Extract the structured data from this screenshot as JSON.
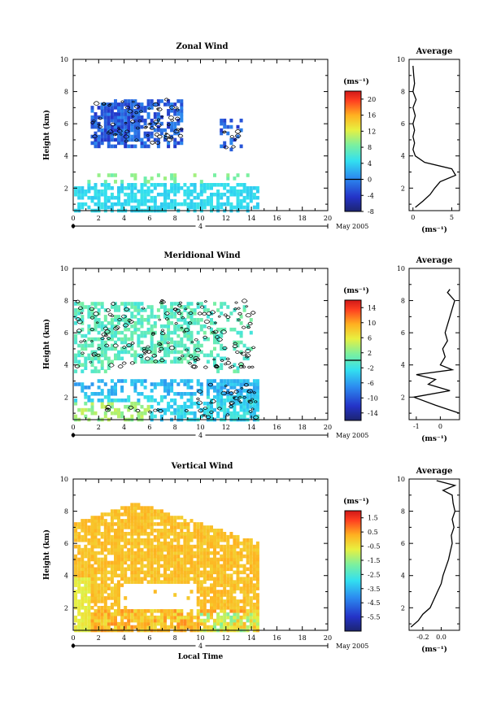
{
  "figure": {
    "x_axis_label": "Local Time",
    "date_label": "May 2005",
    "day_label": "4",
    "cbar_unit": "(ms⁻¹)",
    "avg_title": "Average"
  },
  "chart_data": [
    {
      "type": "heatmap",
      "title": "Zonal Wind",
      "xlabel": "Local Time",
      "ylabel": "Height (km)",
      "xlim": [
        0,
        20
      ],
      "ylim": [
        0.6,
        10
      ],
      "x_ticks": [
        0,
        2,
        4,
        6,
        8,
        10,
        12,
        14,
        16,
        18,
        20
      ],
      "y_ticks": [
        2,
        4,
        6,
        8,
        10
      ],
      "colorbar": {
        "unit": "(ms⁻¹)",
        "range": [
          -8,
          22
        ],
        "ticks": [
          -8,
          -4,
          0,
          4,
          8,
          12,
          16,
          20
        ],
        "contour_at": 0
      },
      "data_extent": {
        "time": [
          0,
          14.6
        ],
        "height": [
          0.6,
          8.0
        ]
      },
      "average": {
        "title": "Average",
        "xlabel": "(ms⁻¹)",
        "xlim": [
          -0.5,
          6
        ],
        "x_ticks": [
          0,
          5
        ],
        "ylim": [
          0.6,
          10
        ],
        "y_ticks": [
          2,
          4,
          6,
          8,
          10
        ],
        "height": [
          0.8,
          1.2,
          1.6,
          2.0,
          2.4,
          2.8,
          3.2,
          3.6,
          4.0,
          4.4,
          4.8,
          5.2,
          5.6,
          6.0,
          6.5,
          7.0,
          7.5,
          8.0,
          8.5,
          9.0,
          9.6
        ],
        "value": [
          0.3,
          1.3,
          2.2,
          2.8,
          3.5,
          5.5,
          5.0,
          1.5,
          0.3,
          0.0,
          0.2,
          0.0,
          0.2,
          0.0,
          0.3,
          0.0,
          0.4,
          0.0,
          0.2,
          0.1,
          0.0
        ]
      }
    },
    {
      "type": "heatmap",
      "title": "Meridional Wind",
      "xlabel": "Local Time",
      "ylabel": "Height (km)",
      "xlim": [
        0,
        20
      ],
      "ylim": [
        0.6,
        10
      ],
      "x_ticks": [
        0,
        2,
        4,
        6,
        8,
        10,
        12,
        14,
        16,
        18,
        20
      ],
      "y_ticks": [
        2,
        4,
        6,
        8,
        10
      ],
      "colorbar": {
        "unit": "(ms⁻¹)",
        "range": [
          -16,
          16
        ],
        "ticks": [
          -14,
          -10,
          -6,
          -2,
          2,
          6,
          10,
          14
        ],
        "contour_at": 0
      },
      "data_extent": {
        "time": [
          0,
          14.6
        ],
        "height": [
          0.6,
          8.0
        ]
      },
      "average": {
        "title": "Average",
        "xlabel": "(ms⁻¹)",
        "xlim": [
          -1.3,
          0.8
        ],
        "x_ticks": [
          -1,
          0
        ],
        "ylim": [
          0.6,
          10
        ],
        "y_ticks": [
          2,
          4,
          6,
          8,
          10
        ],
        "height": [
          1.0,
          1.5,
          2.0,
          2.4,
          2.8,
          3.1,
          3.4,
          3.7,
          4.0,
          4.5,
          5.0,
          5.5,
          6.0,
          6.5,
          7.0,
          7.5,
          8.0,
          8.5,
          8.7
        ],
        "value": [
          0.8,
          -0.2,
          -1.1,
          0.4,
          -0.5,
          -0.2,
          -1.0,
          0.5,
          0.0,
          0.2,
          0.1,
          0.3,
          0.2,
          0.3,
          0.4,
          0.5,
          0.6,
          0.3,
          0.4
        ]
      }
    },
    {
      "type": "heatmap",
      "title": "Vertical Wind",
      "xlabel": "Local Time",
      "ylabel": "Height (km)",
      "xlim": [
        0,
        20
      ],
      "ylim": [
        0.6,
        10
      ],
      "x_ticks": [
        0,
        2,
        4,
        6,
        8,
        10,
        12,
        14,
        16,
        18,
        20
      ],
      "y_ticks": [
        2,
        4,
        6,
        8,
        10
      ],
      "colorbar": {
        "unit": "(ms⁻¹)",
        "range": [
          -6.5,
          2.0
        ],
        "ticks": [
          -5.5,
          -4.5,
          -3.5,
          -2.5,
          -1.5,
          -0.5,
          0.5,
          1.5
        ]
      },
      "data_extent": {
        "time": [
          0,
          14.6
        ],
        "height": [
          0.6,
          8.8
        ]
      },
      "average": {
        "title": "Average",
        "xlabel": "(ms⁻¹)",
        "xlim": [
          -0.35,
          0.2
        ],
        "x_ticks": [
          -0.2,
          0.0
        ],
        "x_tick_labels": [
          "-0.2",
          "0.0"
        ],
        "ylim": [
          0.6,
          10
        ],
        "y_ticks": [
          2,
          4,
          6,
          8,
          10
        ],
        "height": [
          0.8,
          1.2,
          1.6,
          2.0,
          2.5,
          3.0,
          3.5,
          4.0,
          4.5,
          5.0,
          5.5,
          6.0,
          6.5,
          7.0,
          7.5,
          8.0,
          8.5,
          9.0,
          9.3,
          9.6,
          9.9
        ],
        "value": [
          -0.33,
          -0.25,
          -0.2,
          -0.12,
          -0.08,
          -0.04,
          0.0,
          0.02,
          0.05,
          0.08,
          0.1,
          0.12,
          0.11,
          0.14,
          0.12,
          0.15,
          0.13,
          0.12,
          0.02,
          0.15,
          -0.05
        ]
      }
    }
  ]
}
